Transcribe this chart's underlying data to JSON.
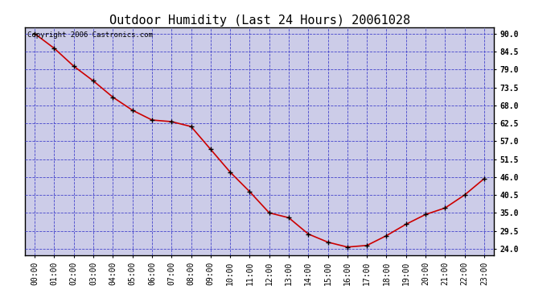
{
  "title": "Outdoor Humidity (Last 24 Hours) 20061028",
  "copyright_text": "Copyright 2006 Castronics.com",
  "background_color": "#ffffff",
  "plot_bg_color": "#cccce8",
  "line_color": "#cc0000",
  "marker_color": "#000000",
  "grid_color": "#4444cc",
  "border_color": "#000000",
  "x_labels": [
    "00:00",
    "01:00",
    "02:00",
    "03:00",
    "04:00",
    "05:00",
    "06:00",
    "07:00",
    "08:00",
    "09:00",
    "10:00",
    "11:00",
    "12:00",
    "13:00",
    "14:00",
    "15:00",
    "16:00",
    "17:00",
    "18:00",
    "19:00",
    "20:00",
    "21:00",
    "22:00",
    "23:00"
  ],
  "y_values": [
    90.0,
    85.5,
    80.0,
    75.5,
    70.5,
    66.5,
    63.5,
    63.0,
    61.5,
    54.5,
    47.5,
    41.5,
    35.0,
    33.5,
    28.5,
    26.0,
    24.5,
    25.0,
    28.0,
    31.5,
    34.5,
    36.5,
    40.5,
    45.5
  ],
  "ylim_min": 22.0,
  "ylim_max": 92.0,
  "yticks": [
    24.0,
    29.5,
    35.0,
    40.5,
    46.0,
    51.5,
    57.0,
    62.5,
    68.0,
    73.5,
    79.0,
    84.5,
    90.0
  ],
  "title_fontsize": 11,
  "tick_fontsize": 7,
  "copyright_fontsize": 6.5
}
